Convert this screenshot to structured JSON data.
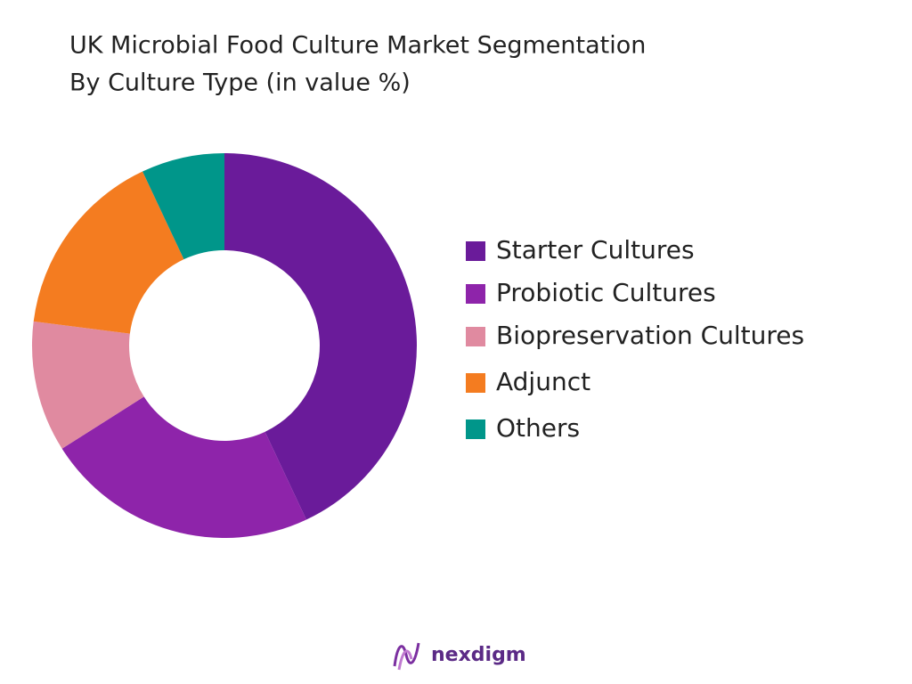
{
  "chart_data": {
    "type": "donut",
    "title": [
      "UK Microbial Food Culture Market Segmentation",
      "By Culture Type (in value %)"
    ],
    "categories": [
      "Starter Cultures",
      "Probiotic Cultures",
      "Biopreservation Cultures",
      "Adjunct",
      "Others"
    ],
    "values": [
      43,
      23,
      11,
      16,
      7
    ],
    "colors": [
      "#6a1b9a",
      "#8e24aa",
      "#e08aa0",
      "#f47c20",
      "#00968a"
    ],
    "legend": "right"
  },
  "logo": "nexdigm"
}
